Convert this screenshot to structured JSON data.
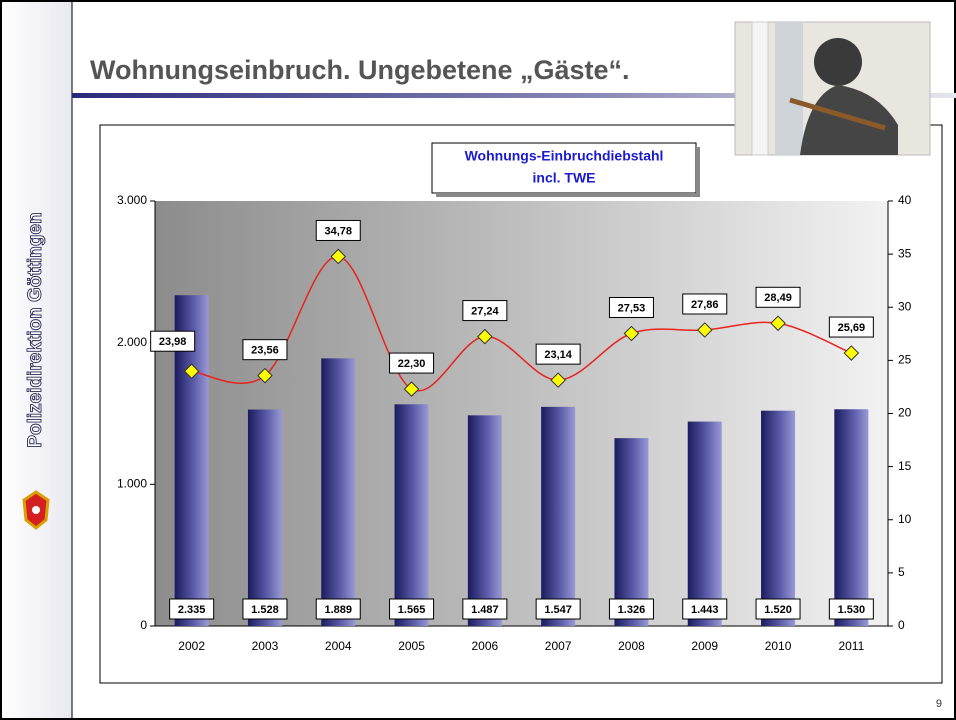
{
  "header": {
    "title": "Wohnungseinbruch. Ungebetene „Gäste“."
  },
  "sidebar": {
    "text": "Polizeidirektion Göttingen"
  },
  "footer": {
    "page_number": "9"
  },
  "chart_data": {
    "type": "combo",
    "title": [
      "Wohnungs-Einbruchdiebstahl",
      "incl. TWE"
    ],
    "categories": [
      "2002",
      "2003",
      "2004",
      "2005",
      "2006",
      "2007",
      "2008",
      "2009",
      "2010",
      "2011"
    ],
    "series": [
      {
        "type": "bar",
        "color": "#2a2a7c",
        "values": [
          2335,
          1528,
          1889,
          1565,
          1487,
          1547,
          1326,
          1443,
          1520,
          1530
        ],
        "value_labels": [
          "2.335",
          "1.528",
          "1.889",
          "1.565",
          "1.487",
          "1.547",
          "1.326",
          "1.443",
          "1.520",
          "1.530"
        ]
      },
      {
        "type": "line",
        "axis": "y2",
        "color": "#e8231f",
        "marker_color": "#ffff00",
        "values": [
          23.98,
          23.56,
          34.78,
          22.3,
          27.24,
          23.14,
          27.53,
          27.86,
          28.49,
          25.69
        ],
        "value_labels": [
          "23,98",
          "23,56",
          "34,78",
          "22,30",
          "27,24",
          "23,14",
          "27,53",
          "27,86",
          "28,49",
          "25,69"
        ]
      }
    ],
    "ylim": [
      0,
      3000
    ],
    "yticks": [
      0,
      {
        "value": 1000,
        "label": "1.000"
      },
      {
        "value": 2000,
        "label": "2.000"
      },
      {
        "value": 3000,
        "label": "3.000"
      }
    ],
    "y2lim": [
      0,
      40
    ],
    "y2ticks": [
      0,
      5,
      10,
      15,
      20,
      25,
      30,
      35,
      40
    ]
  }
}
